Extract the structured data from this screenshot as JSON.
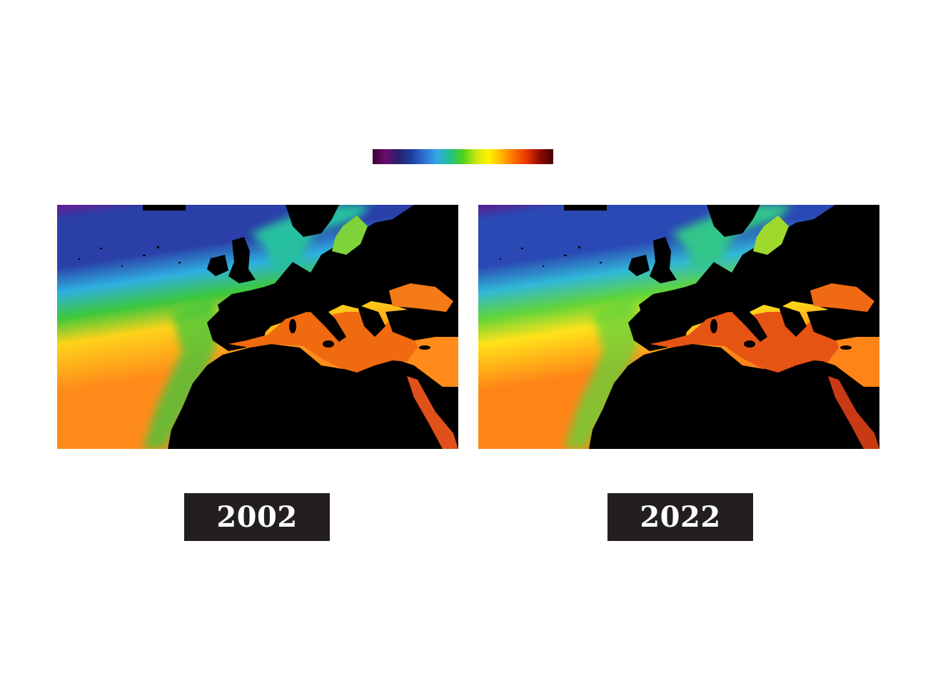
{
  "colorscale": {
    "stops": [
      "#3b0037",
      "#6a0d6e",
      "#2a1d6e",
      "#1d3f9e",
      "#2f6fd0",
      "#33a9e8",
      "#21c08a",
      "#4fd11a",
      "#c8e614",
      "#fff200",
      "#ffb400",
      "#ff6a00",
      "#e43400",
      "#8b0a00",
      "#4a0000"
    ]
  },
  "panels": [
    {
      "year": "2002",
      "colors": {
        "north": "#2a3fa8",
        "polar": "#6a1a8f",
        "mid": "#2fb0e0",
        "front": "#3cc83c",
        "subtropic": "#ffd21a",
        "south": "#ff8c1a",
        "med": "#f06a10",
        "black_sea": "#f57a18",
        "red_sea": "#e0501a",
        "baltic": "#7fd23a",
        "north_sea": "#27c0a0"
      }
    },
    {
      "year": "2022",
      "colors": {
        "north": "#2a49b4",
        "polar": "#5b1d8c",
        "mid": "#31b8d8",
        "front": "#5fd43a",
        "subtropic": "#ffe21a",
        "south": "#ff8417",
        "med": "#e65414",
        "black_sea": "#f06a16",
        "red_sea": "#c73a14",
        "baltic": "#9ed92c",
        "north_sea": "#30c58a"
      }
    }
  ]
}
